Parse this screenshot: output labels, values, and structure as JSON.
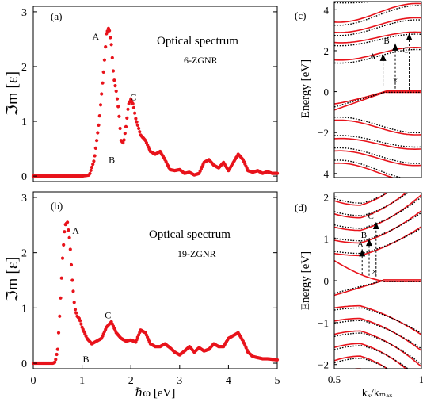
{
  "chart_data": [
    {
      "type": "scatter",
      "panel_label": "(a)",
      "title": "Optical spectrum",
      "subtitle": "6-ZGNR",
      "xlabel": "",
      "ylabel": "ℑm [ε]",
      "xlim": [
        0,
        5
      ],
      "ylim": [
        -0.1,
        3.1
      ],
      "yticks": [
        "0",
        "1",
        "2",
        "3"
      ],
      "point_color": "#e8131b",
      "annotations": [
        {
          "text": "A",
          "x": 1.28,
          "y": 2.55
        },
        {
          "text": "B",
          "x": 1.61,
          "y": 0.3
        },
        {
          "text": "C",
          "x": 2.05,
          "y": 1.44
        }
      ],
      "series": [
        {
          "x": [
            0,
            1.0,
            1.15,
            1.25,
            1.35,
            1.45,
            1.5,
            1.55,
            1.6,
            1.65,
            1.7,
            1.75,
            1.8,
            1.85,
            1.9,
            1.95,
            2.0,
            2.05,
            2.1,
            2.2,
            2.3,
            2.4,
            2.5,
            2.6,
            2.7,
            2.8,
            2.9,
            3.0,
            3.1,
            3.2,
            3.3,
            3.4,
            3.5,
            3.6,
            3.7,
            3.8,
            3.9,
            4.0,
            4.1,
            4.2,
            4.3,
            4.4,
            4.5,
            4.6,
            4.7,
            4.8,
            4.9,
            5.0
          ],
          "y": [
            0,
            0,
            0.02,
            0.3,
            1.0,
            2.0,
            2.6,
            2.72,
            2.4,
            1.8,
            1.55,
            1.2,
            0.65,
            0.6,
            0.9,
            1.3,
            1.4,
            1.3,
            1.05,
            0.75,
            0.65,
            0.45,
            0.4,
            0.45,
            0.3,
            0.12,
            0.1,
            0.12,
            0.05,
            0.07,
            0.02,
            0.05,
            0.25,
            0.3,
            0.2,
            0.15,
            0.25,
            0.1,
            0.25,
            0.4,
            0.3,
            0.1,
            0.07,
            0.1,
            0.05,
            0.08,
            0.05,
            0.05
          ]
        }
      ]
    },
    {
      "type": "scatter",
      "panel_label": "(b)",
      "title": "Optical spectrum",
      "subtitle": "19-ZGNR",
      "xlabel": "ℏω [eV]",
      "ylabel": "ℑm [ε]",
      "xlim": [
        0,
        5
      ],
      "ylim": [
        -0.1,
        3.1
      ],
      "xticks": [
        "0",
        "1",
        "2",
        "3",
        "4",
        "5"
      ],
      "yticks": [
        "0",
        "1",
        "2",
        "3"
      ],
      "point_color": "#e8131b",
      "annotations": [
        {
          "text": "A",
          "x": 0.87,
          "y": 2.4
        },
        {
          "text": "B",
          "x": 1.08,
          "y": 0.07
        },
        {
          "text": "C",
          "x": 1.53,
          "y": 0.87
        }
      ],
      "series": [
        {
          "x": [
            0,
            0.4,
            0.45,
            0.5,
            0.55,
            0.6,
            0.65,
            0.7,
            0.75,
            0.8,
            0.85,
            0.9,
            0.95,
            1.0,
            1.1,
            1.2,
            1.3,
            1.4,
            1.5,
            1.6,
            1.7,
            1.8,
            1.9,
            2.0,
            2.1,
            2.2,
            2.3,
            2.4,
            2.5,
            2.6,
            2.7,
            2.8,
            2.9,
            3.0,
            3.1,
            3.2,
            3.3,
            3.4,
            3.5,
            3.6,
            3.7,
            3.8,
            3.9,
            4.0,
            4.1,
            4.2,
            4.3,
            4.4,
            4.5,
            4.6,
            4.7,
            4.8,
            4.9,
            5.0
          ],
          "y": [
            0,
            0,
            0.02,
            0.25,
            1.0,
            1.9,
            2.5,
            2.55,
            2.2,
            1.5,
            1.0,
            0.85,
            0.8,
            0.65,
            0.45,
            0.35,
            0.4,
            0.45,
            0.65,
            0.75,
            0.55,
            0.45,
            0.4,
            0.42,
            0.38,
            0.6,
            0.55,
            0.35,
            0.3,
            0.3,
            0.35,
            0.28,
            0.2,
            0.15,
            0.22,
            0.3,
            0.2,
            0.28,
            0.22,
            0.25,
            0.35,
            0.3,
            0.3,
            0.45,
            0.5,
            0.55,
            0.4,
            0.2,
            0.12,
            0.1,
            0.08,
            0.08,
            0.07,
            0.06
          ]
        }
      ]
    },
    {
      "type": "line",
      "panel_label": "(c)",
      "xlabel": "",
      "ylabel": "Energy [eV]",
      "xlim": [
        0.5,
        1
      ],
      "ylim": [
        -4.2,
        4.4
      ],
      "yticks": [
        "-4",
        "-2",
        "0",
        "2",
        "4"
      ],
      "solid_color": "#e8131b",
      "dotted_color": "#000000",
      "transition_labels": [
        {
          "text": "A",
          "x": 0.72,
          "y": 1.75
        },
        {
          "text": "B",
          "x": 0.8,
          "y": 2.5
        },
        {
          "text": "C",
          "x": 0.91,
          "y": 2.05
        }
      ],
      "cross_mark": {
        "text": "×",
        "x": 0.85,
        "y": 0.55
      }
    },
    {
      "type": "line",
      "panel_label": "(d)",
      "xlabel": "kₓ/kₘₐₓ",
      "ylabel": "Energy [eV]",
      "xlim": [
        0.5,
        1
      ],
      "ylim": [
        -2.1,
        2.1
      ],
      "xticks": [
        "0.5",
        "1"
      ],
      "yticks": [
        "-2",
        "-1",
        "0",
        "1",
        "2"
      ],
      "solid_color": "#e8131b",
      "dotted_color": "#000000",
      "transition_labels": [
        {
          "text": "A",
          "x": 0.65,
          "y": 0.88
        },
        {
          "text": "B",
          "x": 0.67,
          "y": 1.1
        },
        {
          "text": "C",
          "x": 0.71,
          "y": 1.55
        }
      ],
      "cross_mark": {
        "text": "×",
        "x": 0.73,
        "y": 0.22
      }
    }
  ],
  "panel_c_label": "(c)",
  "panel_d_label": "(d)"
}
